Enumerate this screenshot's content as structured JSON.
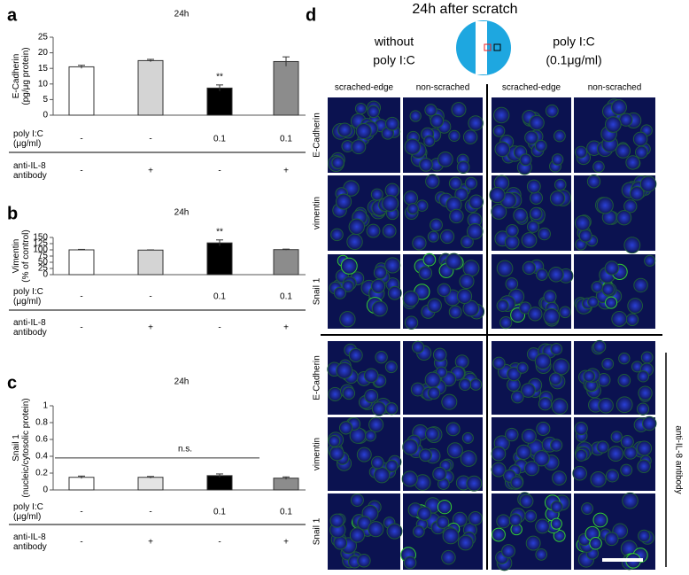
{
  "chart_data": [
    {
      "type": "bar",
      "panel": "a",
      "title": "24h",
      "ylabel": [
        "E-Cadherin",
        "(pg/μg protein)"
      ],
      "values": [
        15.5,
        17.5,
        8.7,
        17.2
      ],
      "errors": [
        0.5,
        0.4,
        1.0,
        1.5
      ],
      "colors": [
        "#ffffff",
        "#d4d4d4",
        "#000000",
        "#8c8c8c"
      ],
      "value_annotations": [
        null,
        null,
        "**",
        null
      ],
      "ylim": [
        0,
        25
      ],
      "yticks": [
        0,
        5,
        10,
        15,
        20,
        25
      ],
      "rows": [
        {
          "label": [
            "poly I:C",
            "(μg/ml)"
          ],
          "cells": [
            "-",
            "-",
            "0.1",
            "0.1"
          ]
        },
        {
          "label": [
            "anti-IL-8",
            "antibody"
          ],
          "cells": [
            "-",
            "+",
            "-",
            "+"
          ]
        }
      ]
    },
    {
      "type": "bar",
      "panel": "b",
      "title": "24h",
      "ylabel": [
        "Vimentin",
        "(% of control)"
      ],
      "values": [
        100,
        99,
        128,
        101
      ],
      "errors": [
        2,
        1,
        12,
        2
      ],
      "colors": [
        "#ffffff",
        "#d4d4d4",
        "#000000",
        "#8c8c8c"
      ],
      "value_annotations": [
        null,
        null,
        "**",
        null
      ],
      "ylim": [
        0,
        150
      ],
      "yticks": [
        0,
        25,
        50,
        75,
        100,
        125,
        150
      ],
      "rows": [
        {
          "label": [
            "poly I:C",
            "(μg/ml)"
          ],
          "cells": [
            "-",
            "-",
            "0.1",
            "0.1"
          ]
        },
        {
          "label": [
            "anti-IL-8",
            "antibody"
          ],
          "cells": [
            "-",
            "+",
            "-",
            "+"
          ]
        }
      ]
    },
    {
      "type": "bar",
      "panel": "c",
      "title": "24h",
      "ylabel": [
        "Snail 1",
        "(nucleic/cytosolic protein)"
      ],
      "values": [
        0.15,
        0.15,
        0.17,
        0.14
      ],
      "errors": [
        0.015,
        0.01,
        0.02,
        0.015
      ],
      "colors": [
        "#ffffff",
        "#e4e4e4",
        "#000000",
        "#8c8c8c"
      ],
      "annotation": "n.s.",
      "ylim": [
        0,
        1
      ],
      "yticks": [
        0,
        0.2,
        0.4,
        0.6,
        0.8,
        1
      ],
      "rows": [
        {
          "label": [
            "poly I:C",
            "(μg/ml)"
          ],
          "cells": [
            "-",
            "-",
            "0.1",
            "0.1"
          ]
        },
        {
          "label": [
            "anti-IL-8",
            "antibody"
          ],
          "cells": [
            "-",
            "+",
            "-",
            "+"
          ]
        }
      ]
    }
  ],
  "panel_d": {
    "letter": "d",
    "title": "24h after scratch",
    "groups": [
      [
        "without",
        "poly I:C"
      ],
      [
        "poly I:C",
        "(0.1μg/ml)"
      ]
    ],
    "columns": [
      "scrached-edge",
      "non-scrached",
      "scrached-edge",
      "non-scrached"
    ],
    "rows": [
      "E-Cadherin",
      "vimentin",
      "Snail 1",
      "E-Cadherin",
      "vimentin",
      "Snail 1"
    ],
    "side_label": "anti-IL-8 antibody"
  }
}
